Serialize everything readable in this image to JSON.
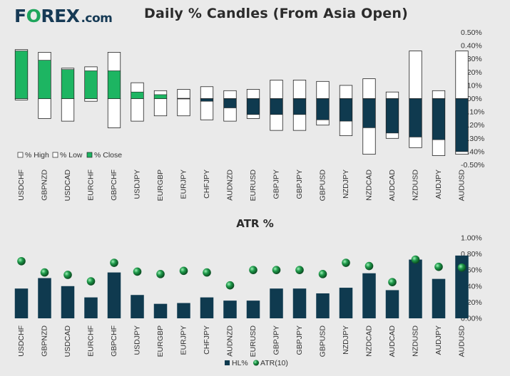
{
  "header": {
    "logo_prefix": "F",
    "logo_o": "O",
    "logo_suffix": "REX",
    "logo_domain": ".com",
    "title": "Daily % Candles (From Asia Open)"
  },
  "colors": {
    "positive": "#1db562",
    "negative": "#0f3a4f",
    "outline": "#222222",
    "atr_marker": "#1a9447"
  },
  "chart_data": [
    {
      "type": "bar",
      "title": "Daily % Candles (From Asia Open)",
      "categories": [
        "USDCHF",
        "GBPNZD",
        "USDCAD",
        "EURCHF",
        "GBPCHF",
        "USDJPY",
        "EURGBP",
        "EURJPY",
        "CHFJPY",
        "AUDNZD",
        "EURUSD",
        "GBPJPY",
        "GBPJPY",
        "GBPUSD",
        "NZDJPY",
        "NZDCAD",
        "AUDCAD",
        "NZDUSD",
        "AUDJPY",
        "AUDUSD"
      ],
      "series": [
        {
          "name": "% High",
          "values": [
            0.37,
            0.35,
            0.23,
            0.24,
            0.35,
            0.12,
            0.06,
            0.07,
            0.09,
            0.06,
            0.07,
            0.14,
            0.14,
            0.13,
            0.1,
            0.15,
            0.05,
            0.36,
            0.06,
            0.36
          ]
        },
        {
          "name": "% Low",
          "values": [
            -0.01,
            -0.15,
            -0.17,
            -0.02,
            -0.22,
            -0.17,
            -0.13,
            -0.13,
            -0.16,
            -0.17,
            -0.15,
            -0.24,
            -0.24,
            -0.2,
            -0.28,
            -0.42,
            -0.3,
            -0.37,
            -0.43,
            -0.42
          ]
        },
        {
          "name": "% Close",
          "values": [
            0.36,
            0.29,
            0.22,
            0.21,
            0.21,
            0.05,
            0.03,
            0.0,
            -0.02,
            -0.07,
            -0.12,
            -0.12,
            -0.12,
            -0.16,
            -0.17,
            -0.22,
            -0.26,
            -0.29,
            -0.31,
            -0.4
          ]
        }
      ],
      "ylim": [
        -0.5,
        0.5
      ],
      "yticks": [
        "0.50%",
        "0.40%",
        "0.30%",
        "0.20%",
        "0.10%",
        "0.00%",
        "-0.10%",
        "-0.20%",
        "-0.30%",
        "-0.40%",
        "-0.50%"
      ],
      "legend": [
        "% High",
        "% Low",
        "% Close"
      ]
    },
    {
      "type": "bar",
      "title": "ATR %",
      "categories": [
        "USDCHF",
        "GBPNZD",
        "USDCAD",
        "EURCHF",
        "GBPCHF",
        "USDJPY",
        "EURGBP",
        "EURJPY",
        "CHFJPY",
        "AUDNZD",
        "EURUSD",
        "GBPJPY",
        "GBPJPY",
        "GBPUSD",
        "NZDJPY",
        "NZDCAD",
        "AUDCAD",
        "NZDUSD",
        "AUDJPY",
        "AUDUSD"
      ],
      "series": [
        {
          "name": "HL%",
          "values": [
            0.37,
            0.5,
            0.4,
            0.26,
            0.57,
            0.29,
            0.18,
            0.19,
            0.26,
            0.22,
            0.22,
            0.37,
            0.37,
            0.31,
            0.38,
            0.56,
            0.35,
            0.73,
            0.49,
            0.78
          ]
        },
        {
          "name": "ATR(10)",
          "values": [
            0.71,
            0.57,
            0.54,
            0.46,
            0.69,
            0.58,
            0.55,
            0.59,
            0.57,
            0.41,
            0.6,
            0.6,
            0.6,
            0.55,
            0.69,
            0.65,
            0.45,
            0.73,
            0.64,
            0.63
          ]
        }
      ],
      "ylim": [
        0,
        1.0
      ],
      "yticks": [
        "1.00%",
        "0.80%",
        "0.60%",
        "0.40%",
        "0.20%",
        "0.00%"
      ],
      "legend": [
        "HL%",
        "ATR(10)"
      ]
    }
  ]
}
